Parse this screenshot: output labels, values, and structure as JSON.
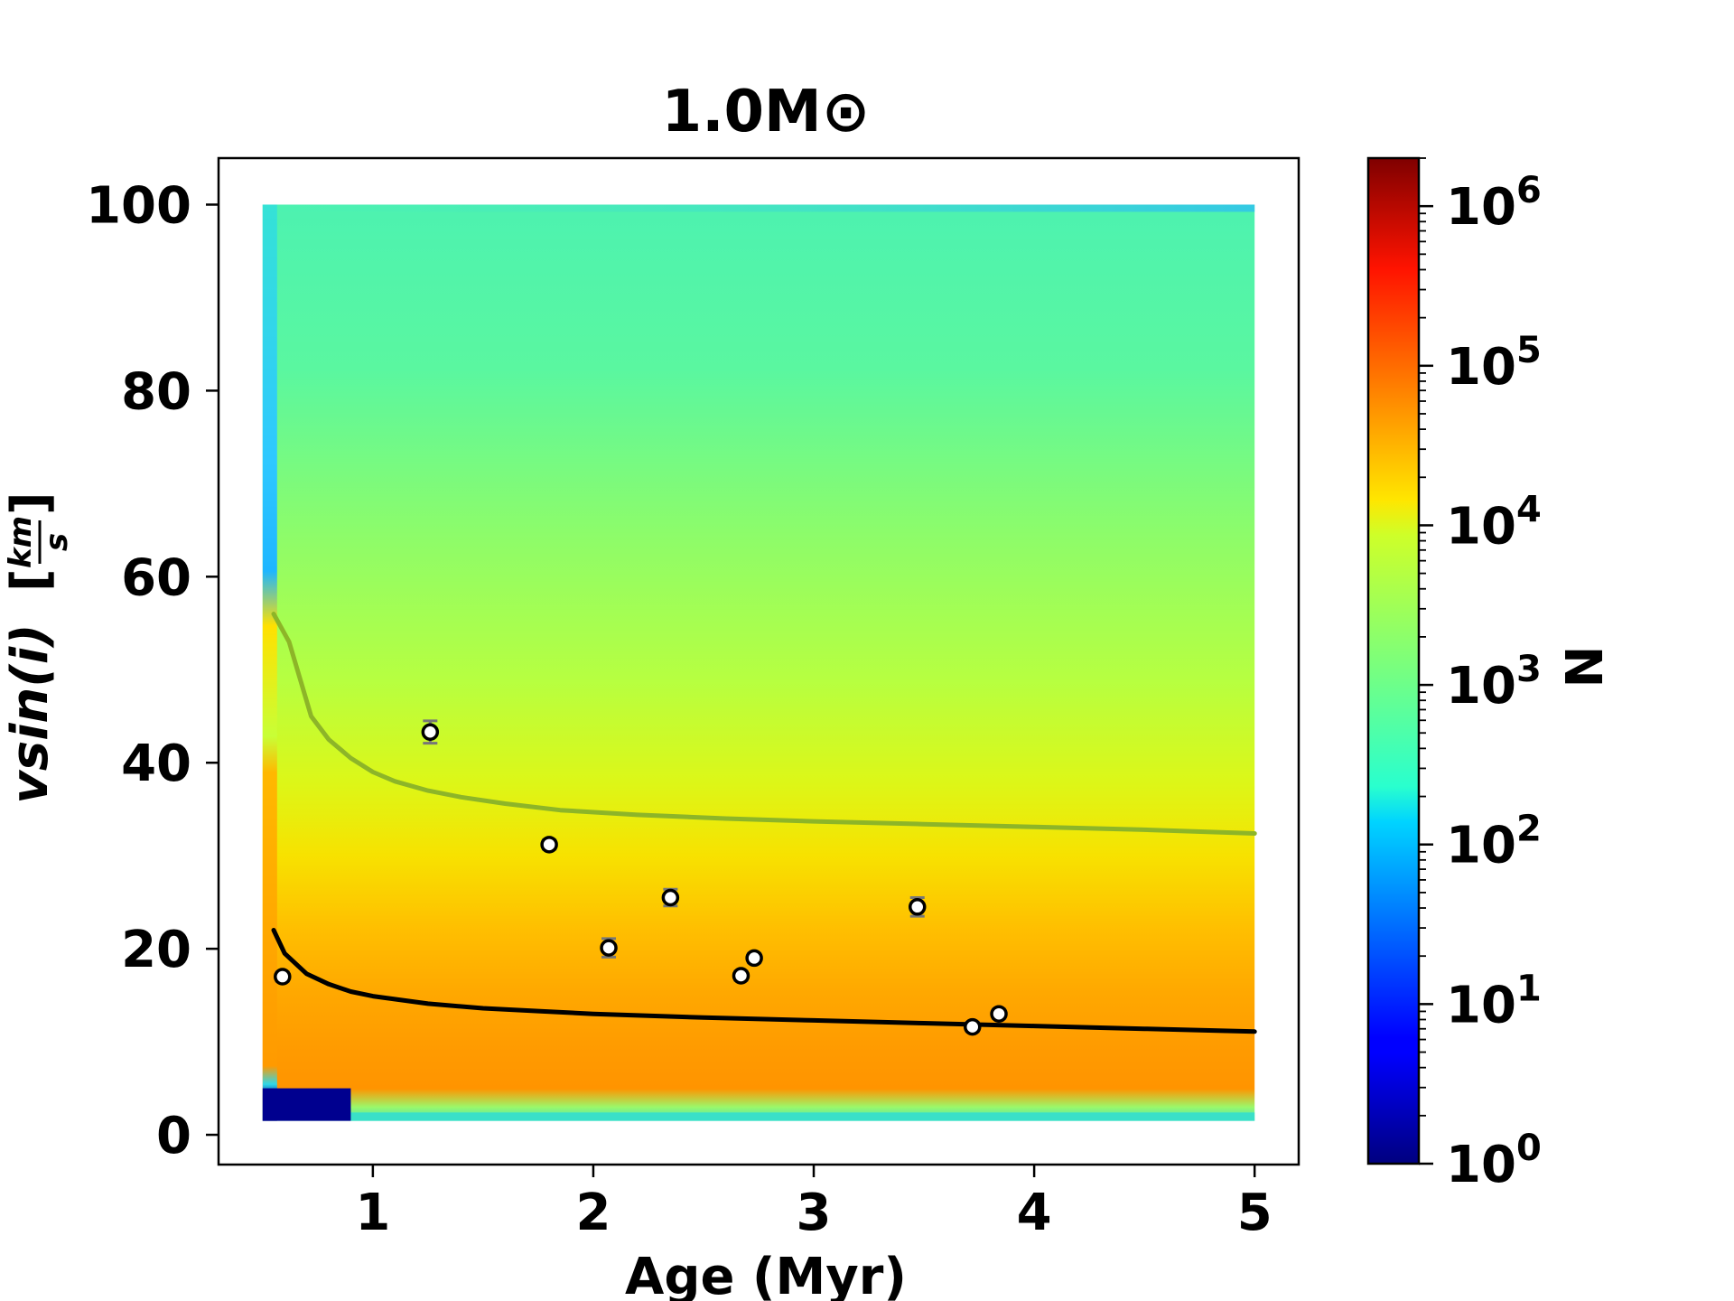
{
  "chart_data": {
    "type": "heatmap",
    "title": "1.0M⊙",
    "xlabel": "Age (Myr)",
    "ylabel": "vsin(i)",
    "ylabel_unit_num": "km",
    "ylabel_unit_den": "s",
    "xlim": [
      0.3,
      5.2
    ],
    "ylim": [
      -3.2,
      105
    ],
    "xticks": [
      1,
      2,
      3,
      4,
      5
    ],
    "yticks": [
      0,
      20,
      40,
      60,
      80,
      100
    ],
    "colorbar": {
      "label": "N",
      "scale": "log",
      "range": [
        1,
        2000000
      ],
      "colormap": "jet",
      "ticks": [
        {
          "base": "10",
          "exp": "0",
          "value": 1
        },
        {
          "base": "10",
          "exp": "1",
          "value": 10
        },
        {
          "base": "10",
          "exp": "2",
          "value": 100
        },
        {
          "base": "10",
          "exp": "3",
          "value": 1000
        },
        {
          "base": "10",
          "exp": "4",
          "value": 10000
        },
        {
          "base": "10",
          "exp": "5",
          "value": 100000
        },
        {
          "base": "10",
          "exp": "6",
          "value": 1000000
        }
      ]
    },
    "heatmap_extent": {
      "x": [
        0.5,
        5.0
      ],
      "y": [
        1.5,
        100
      ]
    },
    "series": [
      {
        "style": "line",
        "color": "#000000",
        "x": [
          0.55,
          0.6,
          0.7,
          0.8,
          0.9,
          1.0,
          1.25,
          1.5,
          1.75,
          2.0,
          2.5,
          3.0,
          3.5,
          4.0,
          4.5,
          5.0
        ],
        "y": [
          22,
          19.5,
          17.3,
          16.2,
          15.4,
          14.9,
          14.1,
          13.6,
          13.3,
          13.0,
          12.6,
          12.3,
          12.0,
          11.7,
          11.4,
          11.1
        ]
      },
      {
        "style": "line",
        "color": "#8db528",
        "x": [
          0.55,
          0.62,
          0.72,
          0.8,
          0.9,
          1.0,
          1.1,
          1.25,
          1.4,
          1.6,
          1.85,
          2.2,
          2.6,
          3.0,
          3.5,
          4.0,
          4.5,
          5.0
        ],
        "y": [
          56,
          53,
          45,
          42.5,
          40.5,
          39,
          38,
          37,
          36.3,
          35.6,
          34.9,
          34.4,
          34.0,
          33.7,
          33.4,
          33.1,
          32.8,
          32.4
        ]
      },
      {
        "style": "points",
        "color": "#ffffff",
        "edge": "#000000",
        "x": [
          0.59,
          1.26,
          1.8,
          2.07,
          2.35,
          2.67,
          2.73,
          3.47,
          3.72,
          3.84
        ],
        "y": [
          17,
          43.3,
          31.2,
          20.1,
          25.5,
          17.1,
          19,
          24.5,
          11.6,
          13
        ],
        "yerr": [
          0.5,
          1.2,
          0.5,
          1.0,
          0.9,
          0.5,
          0.5,
          1.0,
          0.5,
          0.5
        ]
      }
    ]
  }
}
